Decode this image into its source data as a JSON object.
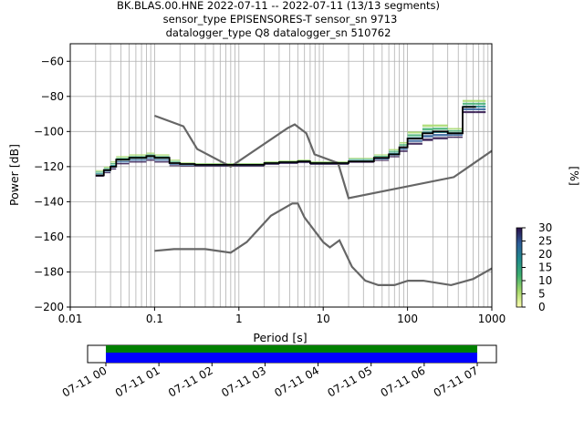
{
  "title": {
    "line1": "BK.BLAS.00.HNE   2022-07-11 -- 2022-07-11  (13/13 segments)",
    "line2": "sensor_type EPISENSORES-T sensor_sn 9713",
    "line3": "datalogger_type Q8 datalogger_sn 510762"
  },
  "chart_data": [
    {
      "type": "line",
      "xlabel": "Period [s]",
      "ylabel": "Power [dB]",
      "xscale": "log",
      "xlim": [
        0.01,
        1000
      ],
      "ylim": [
        -200,
        -50
      ],
      "grid": true,
      "x_ticks": [
        "0.01",
        "0.1",
        "1",
        "10",
        "100",
        "1000"
      ],
      "y_ticks": [
        "−200",
        "−180",
        "−160",
        "−140",
        "−120",
        "−100",
        "−80",
        "−60"
      ],
      "colorbar": {
        "label": "[%]",
        "range": [
          0,
          30
        ],
        "ticks": [
          "0",
          "5",
          "10",
          "15",
          "20",
          "25",
          "30"
        ]
      },
      "noise_models": [
        {
          "points": [
            [
              0.1,
              -91
            ],
            [
              0.22,
              -97
            ],
            [
              0.32,
              -110
            ],
            [
              0.8,
              -120
            ],
            [
              3.8,
              -98
            ],
            [
              4.6,
              -96
            ],
            [
              6.3,
              -101
            ],
            [
              7.9,
              -113
            ],
            [
              15,
              -118
            ],
            [
              20,
              -138
            ],
            [
              354,
              -126
            ],
            [
              1000,
              -111
            ]
          ]
        },
        {
          "points": [
            [
              0.1,
              -168
            ],
            [
              0.17,
              -167
            ],
            [
              0.4,
              -167
            ],
            [
              0.8,
              -169
            ],
            [
              1.24,
              -163
            ],
            [
              2.4,
              -148
            ],
            [
              4.3,
              -141
            ],
            [
              5,
              -141
            ],
            [
              6,
              -149
            ],
            [
              10,
              -163
            ],
            [
              12,
              -166
            ],
            [
              15.6,
              -162
            ],
            [
              21.9,
              -177
            ],
            [
              31.6,
              -185
            ],
            [
              45,
              -187.5
            ],
            [
              70,
              -187.5
            ],
            [
              101,
              -185
            ],
            [
              154,
              -185
            ],
            [
              328,
              -187.5
            ],
            [
              600,
              -184
            ],
            [
              1000,
              -178
            ]
          ]
        }
      ],
      "median_line": [
        [
          0.02,
          -125
        ],
        [
          0.025,
          -122
        ],
        [
          0.03,
          -120
        ],
        [
          0.035,
          -116
        ],
        [
          0.05,
          -115
        ],
        [
          0.08,
          -114
        ],
        [
          0.1,
          -115
        ],
        [
          0.15,
          -118
        ],
        [
          0.2,
          -118.5
        ],
        [
          0.3,
          -119
        ],
        [
          0.5,
          -119
        ],
        [
          1,
          -119
        ],
        [
          2,
          -118
        ],
        [
          3,
          -117.5
        ],
        [
          5,
          -117
        ],
        [
          7,
          -118
        ],
        [
          15,
          -118
        ],
        [
          20,
          -117
        ],
        [
          40,
          -115
        ],
        [
          60,
          -113
        ],
        [
          80,
          -109
        ],
        [
          100,
          -104
        ],
        [
          150,
          -101
        ],
        [
          200,
          -100
        ],
        [
          300,
          -101
        ],
        [
          350,
          -101
        ],
        [
          400,
          -101
        ],
        [
          450,
          -86
        ],
        [
          500,
          -86
        ],
        [
          650,
          -86
        ]
      ],
      "spread_band": [
        [
          0.02,
          -126,
          -122
        ],
        [
          0.025,
          -124,
          -120
        ],
        [
          0.03,
          -122,
          -117
        ],
        [
          0.035,
          -119,
          -114
        ],
        [
          0.05,
          -118,
          -113
        ],
        [
          0.08,
          -117,
          -112
        ],
        [
          0.1,
          -118,
          -113
        ],
        [
          0.15,
          -120,
          -116
        ],
        [
          0.2,
          -120,
          -117.5
        ],
        [
          0.3,
          -120,
          -118
        ],
        [
          0.5,
          -120,
          -118
        ],
        [
          1,
          -120,
          -118
        ],
        [
          2,
          -119,
          -117
        ],
        [
          3,
          -118.5,
          -116.5
        ],
        [
          5,
          -118,
          -116
        ],
        [
          7,
          -119,
          -117
        ],
        [
          15,
          -119,
          -117
        ],
        [
          20,
          -118,
          -115
        ],
        [
          40,
          -117,
          -113
        ],
        [
          60,
          -115,
          -110
        ],
        [
          80,
          -112,
          -106
        ],
        [
          100,
          -108,
          -100
        ],
        [
          150,
          -106,
          -96
        ],
        [
          200,
          -105,
          -96
        ],
        [
          300,
          -104,
          -98
        ],
        [
          350,
          -104,
          -98
        ],
        [
          400,
          -104,
          -98
        ],
        [
          450,
          -90,
          -82
        ],
        [
          500,
          -90,
          -82
        ],
        [
          650,
          -90,
          -82
        ]
      ]
    },
    {
      "type": "timeline",
      "x_ticks": [
        "07-11 00",
        "07-11 01",
        "07-11 02",
        "07-11 03",
        "07-11 04",
        "07-11 05",
        "07-11 06",
        "07-11 07"
      ],
      "coverage": [
        {
          "color": "#008000",
          "start_hour": 0,
          "end_hour": 7
        },
        {
          "color": "#0000ff",
          "start_hour": 0,
          "end_hour": 7
        }
      ]
    }
  ]
}
